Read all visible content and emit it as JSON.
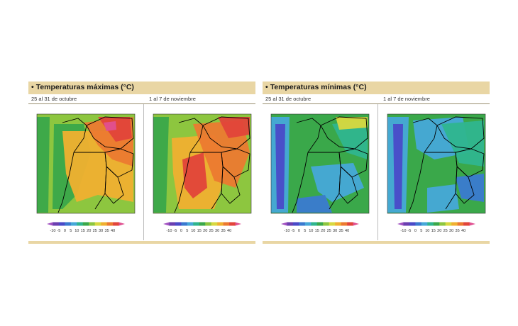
{
  "panels": [
    {
      "title": "Temperaturas máximas (°C)",
      "maps": [
        {
          "label": "25 al 31 de octubre",
          "scheme": "max1"
        },
        {
          "label": "1 al 7 de noviembre",
          "scheme": "max2"
        }
      ]
    },
    {
      "title": "Temperaturas mínimas (°C)",
      "maps": [
        {
          "label": "25 al 31 de octubre",
          "scheme": "min1"
        },
        {
          "label": "1 al 7 de noviembre",
          "scheme": "min2"
        }
      ]
    }
  ],
  "legend": {
    "ticks": [
      "-10",
      "-5",
      "0",
      "5",
      "10",
      "15",
      "20",
      "25",
      "30",
      "35",
      "40"
    ],
    "colors": [
      "#a050c0",
      "#6b3fb0",
      "#4a4ac8",
      "#3a7ad0",
      "#46a8d8",
      "#2fb58e",
      "#3aa84a",
      "#8dc63f",
      "#d8d840",
      "#f0b030",
      "#ec7a30",
      "#e2453a",
      "#e05090"
    ]
  },
  "colors": {
    "header_bg": "#e9d6a4",
    "border_line": "#000000"
  }
}
